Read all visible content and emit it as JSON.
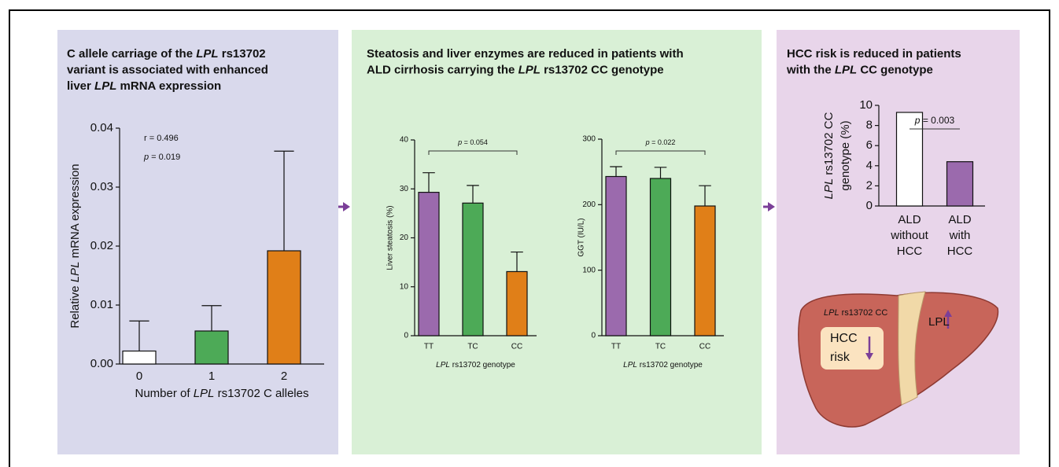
{
  "panels": [
    {
      "heading": [
        [
          {
            "text": "C allele carriage of the "
          },
          {
            "text": "LPL",
            "italic": true
          },
          {
            "text": " rs13702"
          }
        ],
        "variant is associated with enhanced",
        [
          {
            "text": "liver "
          },
          {
            "text": "LPL",
            "italic": true
          },
          {
            "text": " mRNA expression"
          }
        ]
      ]
    },
    {
      "heading": [
        "Steatosis and liver enzymes are reduced in patients with",
        [
          {
            "text": "ALD cirrhosis carrying the "
          },
          {
            "text": "LPL",
            "italic": true
          },
          {
            "text": " rs13702 CC genotype"
          }
        ]
      ]
    },
    {
      "heading": [
        "HCC risk is reduced in patients",
        [
          {
            "text": "with the "
          },
          {
            "text": "LPL",
            "italic": true
          },
          {
            "text": " CC genotype"
          }
        ]
      ]
    }
  ],
  "chart_data": [
    {
      "type": "bar",
      "categories": [
        "0",
        "1",
        "2"
      ],
      "values": [
        0.0022,
        0.0056,
        0.0192
      ],
      "errors": [
        0.0051,
        0.0043,
        0.0169
      ],
      "colors": [
        "#ffffff",
        "#4daa57",
        "#e07f18"
      ],
      "ylim": [
        0,
        0.04
      ],
      "yticks": [
        {
          "value": 0,
          "label": "0.00"
        },
        0.01,
        0.02,
        0.03,
        0.04
      ],
      "y_label": [
        [
          {
            "text": "Relative "
          },
          {
            "text": "LPL",
            "italic": true
          },
          {
            "text": " mRNA expression"
          }
        ]
      ],
      "x_label": [
        [
          {
            "text": "Number of "
          },
          {
            "text": "LPL",
            "italic": true
          },
          {
            "text": " rs13702 C alleles"
          }
        ]
      ],
      "annotations": [
        "r = 0.496",
        [
          {
            "text": "p",
            "italic": true
          },
          {
            "text": " = 0.019"
          }
        ]
      ]
    },
    {
      "type": "bar",
      "categories": [
        "TT",
        "TC",
        "CC"
      ],
      "values": [
        29.3,
        27.1,
        13.1
      ],
      "errors": [
        4.0,
        3.6,
        4.0
      ],
      "colors": [
        "#9b6aad",
        "#4daa57",
        "#e07f18"
      ],
      "ylim": [
        0,
        40
      ],
      "yticks": [
        0,
        10,
        20,
        30,
        40
      ],
      "y_label": [
        "Liver steatosis (%)"
      ],
      "x_label": [
        [
          {
            "text": "LPL",
            "italic": true
          },
          {
            "text": " rs13702 genotype"
          }
        ]
      ],
      "significance": [
        {
          "text": "p",
          "italic": true
        },
        {
          "text": " = 0.054"
        }
      ]
    },
    {
      "type": "bar",
      "categories": [
        "TT",
        "TC",
        "CC"
      ],
      "values": [
        243,
        240,
        198
      ],
      "errors": [
        15,
        17,
        31
      ],
      "colors": [
        "#9b6aad",
        "#4daa57",
        "#e07f18"
      ],
      "ylim": [
        0,
        300
      ],
      "yticks": [
        0,
        100,
        200,
        300
      ],
      "y_label": [
        "GGT (IU/L)"
      ],
      "x_label": [
        [
          {
            "text": "LPL",
            "italic": true
          },
          {
            "text": " rs13702 genotype"
          }
        ]
      ],
      "significance": [
        {
          "text": "p",
          "italic": true
        },
        {
          "text": " = 0.022"
        }
      ]
    },
    {
      "type": "bar",
      "categories": [
        [
          "ALD",
          "without",
          "HCC"
        ],
        [
          "ALD",
          "with",
          "HCC"
        ]
      ],
      "values": [
        9.3,
        4.4
      ],
      "colors": [
        "#ffffff",
        "#9b6aad"
      ],
      "ylim": [
        0,
        10
      ],
      "yticks": [
        0,
        2,
        4,
        6,
        8,
        10
      ],
      "y_label": [
        [
          {
            "text": "LPL",
            "italic": true
          },
          {
            "text": " rs13702 CC"
          }
        ],
        "genotype (%)"
      ],
      "significance": [
        {
          "text": "p",
          "italic": true
        },
        {
          "text": " = 0.003"
        }
      ]
    }
  ],
  "illustration": {
    "genotype": [
      {
        "text": "LPL",
        "italic": true
      },
      {
        "text": " rs13702 CC"
      }
    ],
    "gene": "LPL",
    "risk": [
      "HCC",
      "risk"
    ]
  }
}
